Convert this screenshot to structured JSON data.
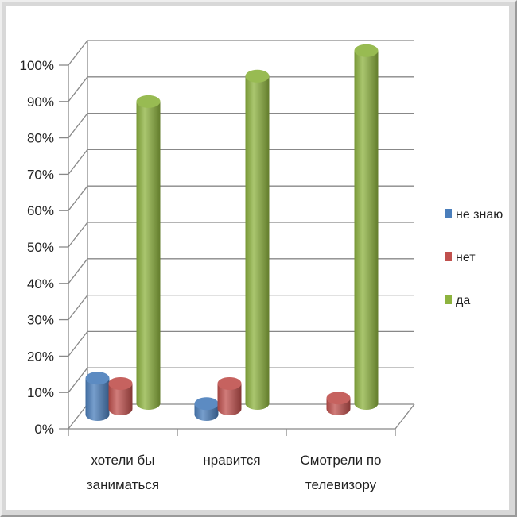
{
  "chart_data": {
    "type": "bar",
    "categories": [
      [
        "хотели бы",
        "заниматься"
      ],
      [
        "нравится"
      ],
      [
        "Смотрели по",
        "телевизору"
      ]
    ],
    "series": [
      {
        "name": "не знаю",
        "color": "#4a7ebb",
        "values": [
          10,
          3,
          0
        ]
      },
      {
        "name": "нет",
        "color": "#c0504d",
        "values": [
          7,
          7,
          3
        ]
      },
      {
        "name": "да",
        "color": "#8db33f",
        "values": [
          83,
          90,
          97
        ]
      }
    ],
    "yticks": [
      "0%",
      "10%",
      "20%",
      "30%",
      "40%",
      "50%",
      "60%",
      "70%",
      "80%",
      "90%",
      "100%"
    ],
    "ylim": [
      0,
      100
    ],
    "grid": true,
    "legend_position": "right",
    "style": "3d-cylinder"
  }
}
